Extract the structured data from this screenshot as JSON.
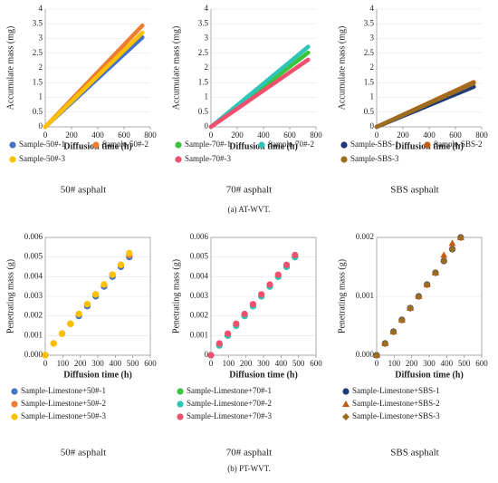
{
  "captions": [
    "(a) AT-WVT.",
    "(b) PT-WVT."
  ],
  "chart_data": [
    {
      "type": "line",
      "caption": "50# asphalt",
      "x_label": "Diffusion time (h)",
      "y_label": "Accumulate mass (mg)",
      "x": [
        0,
        185,
        370,
        555,
        740
      ],
      "xlim": [
        0,
        800
      ],
      "xticks": [
        0,
        200,
        400,
        600,
        800
      ],
      "ylim": [
        0,
        4
      ],
      "yticks": [
        0,
        0.5,
        1,
        1.5,
        2,
        2.5,
        3,
        3.5,
        4
      ],
      "series": [
        {
          "name": "Sample-50#-1",
          "color": "#4472c4",
          "values": [
            0,
            0.76,
            1.52,
            2.28,
            3.04
          ]
        },
        {
          "name": "Sample-50#-2",
          "color": "#ed7d31",
          "values": [
            0,
            0.86,
            1.72,
            2.58,
            3.44
          ]
        },
        {
          "name": "Sample-50#-3",
          "color": "#ffc000",
          "values": [
            0,
            0.8,
            1.6,
            2.4,
            3.2
          ]
        }
      ]
    },
    {
      "type": "line",
      "caption": "70# asphalt",
      "x_label": "Diffusion time (h)",
      "y_label": "Accumulate mass (mg)",
      "x": [
        0,
        185,
        370,
        555,
        740
      ],
      "xlim": [
        0,
        800
      ],
      "xticks": [
        0,
        200,
        400,
        600,
        800
      ],
      "ylim": [
        0,
        4
      ],
      "yticks": [
        0,
        0.5,
        1,
        1.5,
        2,
        2.5,
        3,
        3.5,
        4
      ],
      "series": [
        {
          "name": "Sample-70#-1",
          "color": "#3cc43c",
          "values": [
            0,
            0.63,
            1.26,
            1.89,
            2.52
          ]
        },
        {
          "name": "Sample-70#-2",
          "color": "#2ec4b6",
          "values": [
            0,
            0.68,
            1.36,
            2.04,
            2.72
          ]
        },
        {
          "name": "Sample-70#-3",
          "color": "#f0506e",
          "values": [
            0,
            0.57,
            1.14,
            1.71,
            2.28
          ]
        }
      ]
    },
    {
      "type": "line",
      "caption": "SBS asphalt",
      "x_label": "Diffusion time (h)",
      "y_label": "Accumulate mass (mg)",
      "x": [
        0,
        185,
        370,
        555,
        740
      ],
      "xlim": [
        0,
        800
      ],
      "xticks": [
        0,
        200,
        400,
        600,
        800
      ],
      "ylim": [
        0,
        4
      ],
      "yticks": [
        0,
        0.5,
        1,
        1.5,
        2,
        2.5,
        3,
        3.5,
        4
      ],
      "series": [
        {
          "name": "Sample-SBS-1",
          "color": "#1f3a7a",
          "values": [
            0,
            0.34,
            0.68,
            1.02,
            1.36
          ]
        },
        {
          "name": "Sample-SBS-2",
          "color": "#c55a11",
          "values": [
            0,
            0.38,
            0.76,
            1.14,
            1.52
          ]
        },
        {
          "name": "Sample-SBS-3",
          "color": "#9c6d1e",
          "values": [
            0,
            0.37,
            0.74,
            1.11,
            1.48
          ]
        }
      ]
    },
    {
      "type": "scatter",
      "caption": "50# asphalt",
      "x_label": "Diffusion time (h)",
      "y_label": "Penetrating mass (g)",
      "x": [
        0,
        48,
        96,
        144,
        192,
        240,
        288,
        336,
        384,
        432,
        480
      ],
      "xlim": [
        0,
        600
      ],
      "xticks": [
        0,
        100,
        200,
        300,
        400,
        500,
        600
      ],
      "ylim": [
        0,
        0.006
      ],
      "yticks": [
        {
          "value": 0,
          "label": "0.000"
        },
        0.001,
        0.002,
        0.003,
        0.004,
        0.005,
        0.006
      ],
      "series": [
        {
          "name": "Sample-Limestone+50#-1",
          "color": "#4472c4",
          "marker": "circle",
          "values": [
            0,
            0.0006,
            0.0011,
            0.0016,
            0.002,
            0.0025,
            0.003,
            0.0035,
            0.004,
            0.0045,
            0.005
          ]
        },
        {
          "name": "Sample-Limestone+50#-2",
          "color": "#ed7d31",
          "marker": "circle",
          "values": [
            0,
            0.0006,
            0.0011,
            0.0016,
            0.0021,
            0.0026,
            0.0031,
            0.0036,
            0.0041,
            0.0046,
            0.0051
          ]
        },
        {
          "name": "Sample-Limestone+50#-3",
          "color": "#ffc000",
          "marker": "circle",
          "values": [
            0,
            0.0006,
            0.0011,
            0.0016,
            0.0021,
            0.0026,
            0.0031,
            0.0036,
            0.0041,
            0.0046,
            0.0052
          ]
        }
      ]
    },
    {
      "type": "scatter",
      "caption": "70# asphalt",
      "x_label": "Diffusion time (h)",
      "y_label": "Penetrating mass (g)",
      "x": [
        0,
        48,
        96,
        144,
        192,
        240,
        288,
        336,
        384,
        432,
        480
      ],
      "xlim": [
        0,
        600
      ],
      "xticks": [
        0,
        100,
        200,
        300,
        400,
        500,
        600
      ],
      "ylim": [
        0,
        0.006
      ],
      "yticks": [
        0,
        0.001,
        0.002,
        0.003,
        0.004,
        0.005,
        0.006
      ],
      "series": [
        {
          "name": "Sample-Limestone+70#-1",
          "color": "#3cc43c",
          "marker": "circle",
          "values": [
            0,
            0.0005,
            0.001,
            0.0015,
            0.002,
            0.0025,
            0.003,
            0.0035,
            0.004,
            0.0045,
            0.005
          ]
        },
        {
          "name": "Sample-Limestone+70#-2",
          "color": "#2ec4b6",
          "marker": "circle",
          "values": [
            0,
            0.0005,
            0.001,
            0.0015,
            0.002,
            0.0025,
            0.003,
            0.0035,
            0.004,
            0.0045,
            0.005
          ]
        },
        {
          "name": "Sample-Limestone+70#-3",
          "color": "#f0506e",
          "marker": "circle",
          "values": [
            0,
            0.0006,
            0.0011,
            0.0016,
            0.0021,
            0.0026,
            0.0031,
            0.0036,
            0.0041,
            0.0046,
            0.0051
          ]
        }
      ]
    },
    {
      "type": "scatter",
      "caption": "SBS asphalt",
      "x_label": "Diffusion time (h)",
      "y_label": "Penetrating mass (g)",
      "x": [
        0,
        48,
        96,
        144,
        192,
        240,
        288,
        336,
        384,
        432,
        480
      ],
      "xlim": [
        0,
        600
      ],
      "xticks": [
        0,
        100,
        200,
        300,
        400,
        500,
        600
      ],
      "ylim": [
        0,
        0.002
      ],
      "yticks": [
        {
          "value": 0,
          "label": "0.000"
        },
        0.001,
        0.002
      ],
      "series": [
        {
          "name": "Sample-Limestone+SBS-1",
          "color": "#1f3a7a",
          "marker": "circle",
          "values": [
            0,
            0.0002,
            0.0004,
            0.0006,
            0.0008,
            0.001,
            0.0012,
            0.0014,
            0.0016,
            0.0018,
            0.002
          ]
        },
        {
          "name": "Sample-Limestone+SBS-2",
          "color": "#c55a11",
          "marker": "triangle",
          "values": [
            0,
            0.0002,
            0.0004,
            0.0006,
            0.0008,
            0.001,
            0.0012,
            0.0014,
            0.0017,
            0.0019,
            0.002
          ]
        },
        {
          "name": "Sample-Limestone+SBS-3",
          "color": "#9c6d1e",
          "marker": "diamond",
          "values": [
            0,
            0.0002,
            0.0004,
            0.0006,
            0.0008,
            0.001,
            0.0012,
            0.0014,
            0.0016,
            0.0018,
            0.002
          ]
        }
      ]
    }
  ]
}
